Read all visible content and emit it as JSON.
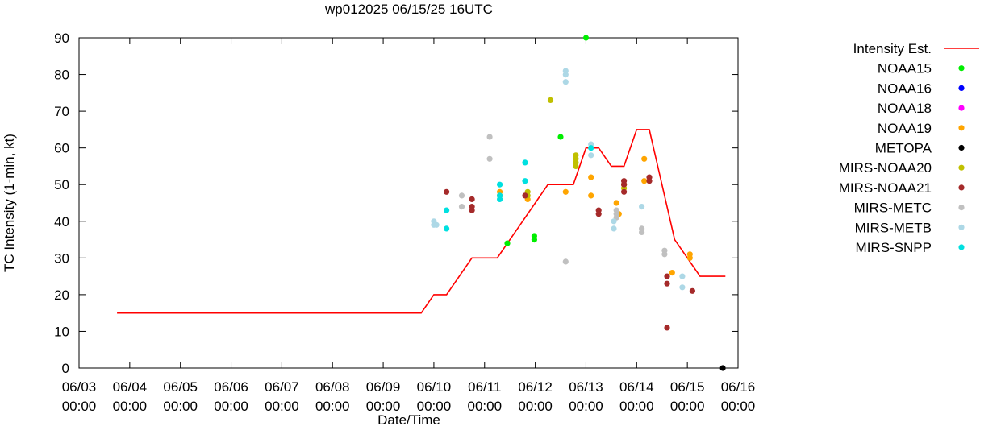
{
  "chart_data": {
    "type": "scatter",
    "title": "wp012025 06/15/25 16UTC",
    "xlabel": "Date/Time",
    "ylabel": "TC Intensity (1-min, kt)",
    "xlim": [
      0,
      13
    ],
    "ylim": [
      0,
      90
    ],
    "yticks": [
      0,
      10,
      20,
      30,
      40,
      50,
      60,
      70,
      80,
      90
    ],
    "xticks": [
      {
        "date": "06/03",
        "time": "00:00"
      },
      {
        "date": "06/04",
        "time": "00:00"
      },
      {
        "date": "06/05",
        "time": "00:00"
      },
      {
        "date": "06/06",
        "time": "00:00"
      },
      {
        "date": "06/07",
        "time": "00:00"
      },
      {
        "date": "06/08",
        "time": "00:00"
      },
      {
        "date": "06/09",
        "time": "00:00"
      },
      {
        "date": "06/10",
        "time": "00:00"
      },
      {
        "date": "06/11",
        "time": "00:00"
      },
      {
        "date": "06/12",
        "time": "00:00"
      },
      {
        "date": "06/13",
        "time": "00:00"
      },
      {
        "date": "06/14",
        "time": "00:00"
      },
      {
        "date": "06/15",
        "time": "00:00"
      },
      {
        "date": "06/16",
        "time": "00:00"
      }
    ],
    "line": {
      "name": "Intensity Est.",
      "color": "#ff0000",
      "x": [
        0.75,
        6.75,
        7.0,
        7.25,
        7.75,
        8.25,
        8.75,
        9.0,
        9.25,
        9.75,
        10.0,
        10.25,
        10.5,
        10.75,
        11.0,
        11.25,
        11.75,
        12.25,
        12.5,
        12.75
      ],
      "y": [
        15,
        15,
        20,
        20,
        30,
        30,
        40,
        45,
        50,
        50,
        60,
        60,
        55,
        55,
        65,
        65,
        35,
        25,
        25,
        25
      ]
    },
    "series": [
      {
        "name": "NOAA15",
        "color": "#00ee00",
        "points": [
          [
            8.45,
            34
          ],
          [
            8.98,
            36
          ],
          [
            8.98,
            35
          ],
          [
            9.5,
            63
          ],
          [
            10.0,
            90
          ]
        ]
      },
      {
        "name": "NOAA16",
        "color": "#0000ff",
        "points": []
      },
      {
        "name": "NOAA18",
        "color": "#ff00ff",
        "points": []
      },
      {
        "name": "NOAA19",
        "color": "#ffa500",
        "points": [
          [
            8.3,
            48
          ],
          [
            8.3,
            47
          ],
          [
            8.85,
            46
          ],
          [
            9.6,
            48
          ],
          [
            10.1,
            52
          ],
          [
            10.1,
            47
          ],
          [
            10.6,
            45
          ],
          [
            10.65,
            42
          ],
          [
            10.75,
            50
          ],
          [
            11.15,
            57
          ],
          [
            11.15,
            51
          ],
          [
            11.7,
            26
          ],
          [
            12.05,
            31
          ],
          [
            12.05,
            30
          ]
        ]
      },
      {
        "name": "METOPA",
        "color": "#000000",
        "points": [
          [
            12.7,
            0
          ]
        ]
      },
      {
        "name": "MIRS-NOAA20",
        "color": "#c0c000",
        "points": [
          [
            8.85,
            48
          ],
          [
            8.85,
            47
          ],
          [
            9.3,
            73
          ],
          [
            9.8,
            58
          ],
          [
            9.8,
            57
          ],
          [
            9.8,
            56
          ],
          [
            9.8,
            55
          ],
          [
            10.75,
            50
          ],
          [
            10.75,
            49
          ]
        ]
      },
      {
        "name": "MIRS-NOAA21",
        "color": "#a52a2a",
        "points": [
          [
            7.25,
            48
          ],
          [
            7.75,
            46
          ],
          [
            7.75,
            44
          ],
          [
            7.75,
            43
          ],
          [
            8.8,
            47
          ],
          [
            10.25,
            43
          ],
          [
            10.25,
            42
          ],
          [
            10.75,
            51
          ],
          [
            10.75,
            50
          ],
          [
            10.75,
            48
          ],
          [
            11.25,
            52
          ],
          [
            11.25,
            51
          ],
          [
            11.6,
            11
          ],
          [
            11.6,
            25
          ],
          [
            11.6,
            23
          ],
          [
            12.1,
            21
          ]
        ]
      },
      {
        "name": "MIRS-METC",
        "color": "#c0c0c0",
        "points": [
          [
            7.55,
            47
          ],
          [
            7.55,
            44
          ],
          [
            8.1,
            63
          ],
          [
            8.1,
            57
          ],
          [
            9.6,
            29
          ],
          [
            10.6,
            43
          ],
          [
            10.6,
            42
          ],
          [
            10.6,
            41
          ],
          [
            11.1,
            38
          ],
          [
            11.1,
            37
          ],
          [
            11.55,
            32
          ],
          [
            11.55,
            31
          ]
        ]
      },
      {
        "name": "MIRS-METB",
        "color": "#add8e6",
        "points": [
          [
            7.0,
            40
          ],
          [
            7.0,
            39
          ],
          [
            7.05,
            39
          ],
          [
            9.6,
            81
          ],
          [
            9.6,
            80
          ],
          [
            9.6,
            78
          ],
          [
            10.1,
            61
          ],
          [
            10.1,
            58
          ],
          [
            10.55,
            40
          ],
          [
            10.55,
            38
          ],
          [
            11.1,
            44
          ],
          [
            11.9,
            25
          ],
          [
            11.9,
            22
          ]
        ]
      },
      {
        "name": "MIRS-SNPP",
        "color": "#00e0e0",
        "points": [
          [
            7.25,
            43
          ],
          [
            7.25,
            38
          ],
          [
            8.3,
            50
          ],
          [
            8.3,
            47
          ],
          [
            8.3,
            46
          ],
          [
            8.8,
            56
          ],
          [
            8.8,
            51
          ],
          [
            10.1,
            60
          ]
        ]
      }
    ],
    "legend_position": "right"
  }
}
